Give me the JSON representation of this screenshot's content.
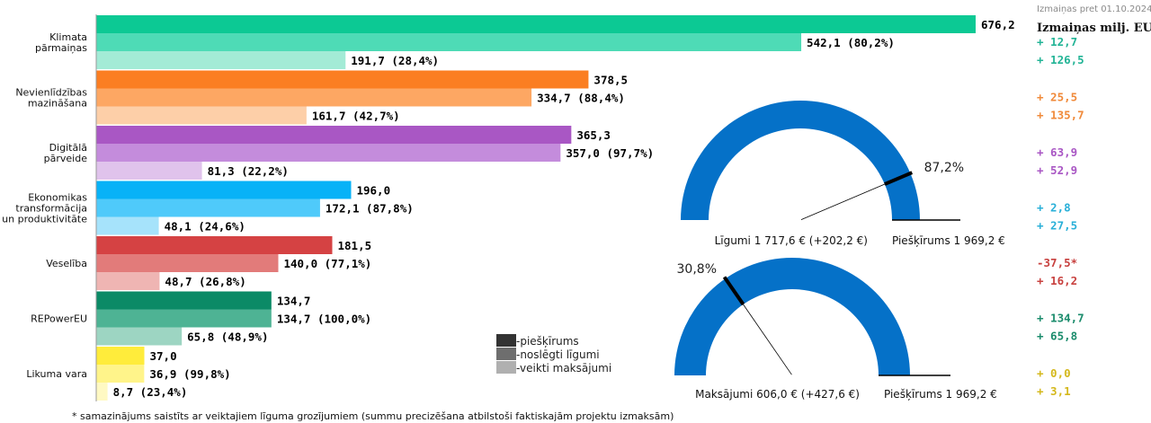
{
  "chart_data": {
    "type": "bar",
    "orientation": "horizontal",
    "x_max": 676.2,
    "categories": [
      {
        "name": "Klimata pārmaiņas",
        "lines": [
          "Klimata",
          "pārmaiņas"
        ],
        "bars": [
          {
            "value": 676.2,
            "label": "676,2",
            "color": "#0cc994"
          },
          {
            "value": 542.1,
            "label": "542,1 (80,2%)",
            "color": "#4edbb6"
          },
          {
            "value": 191.7,
            "label": "191,7 (28,4%)",
            "color": "#a3ebd6"
          }
        ],
        "changes": [
          {
            "text": "+ 12,7",
            "color": "#23b496"
          },
          {
            "text": "+ 126,5",
            "color": "#23b496"
          }
        ]
      },
      {
        "name": "Nevienlīdzības mazināšana",
        "lines": [
          "Nevienlīdzības",
          "mazināšana"
        ],
        "bars": [
          {
            "value": 378.5,
            "label": "378,5",
            "color": "#fb7e22"
          },
          {
            "value": 334.7,
            "label": "334,7 (88,4%)",
            "color": "#fda763"
          },
          {
            "value": 161.7,
            "label": "161,7 (42,7%)",
            "color": "#fdcfa8"
          }
        ],
        "changes": [
          {
            "text": "+ 25,5",
            "color": "#f08a3a"
          },
          {
            "text": "+ 135,7",
            "color": "#f08a3a"
          }
        ]
      },
      {
        "name": "Digitālā pārveide",
        "lines": [
          "Digitālā",
          "pārveide"
        ],
        "bars": [
          {
            "value": 365.3,
            "label": "365,3",
            "color": "#a957c4"
          },
          {
            "value": 357.0,
            "label": "357,0 (97,7%)",
            "color": "#c48cdc"
          },
          {
            "value": 81.3,
            "label": "81,3 (22,2%)",
            "color": "#e0c3ec"
          }
        ],
        "changes": [
          {
            "text": "+ 63,9",
            "color": "#a957c4"
          },
          {
            "text": "+ 52,9",
            "color": "#a957c4"
          }
        ]
      },
      {
        "name": "Ekonomikas transformācija un produktivitāte",
        "lines": [
          "Ekonomikas",
          "transformācija",
          "un produktivitāte"
        ],
        "bars": [
          {
            "value": 196.0,
            "label": "196,0",
            "color": "#08b2f7"
          },
          {
            "value": 172.1,
            "label": "172,1 (87,8%)",
            "color": "#4fcafa"
          },
          {
            "value": 48.1,
            "label": "48,1 (24,6%)",
            "color": "#a6e3fb"
          }
        ],
        "changes": [
          {
            "text": "+ 2,8",
            "color": "#2ab0d8"
          },
          {
            "text": "+ 27,5",
            "color": "#2ab0d8"
          }
        ]
      },
      {
        "name": "Veselība",
        "lines": [
          "Veselība"
        ],
        "bars": [
          {
            "value": 181.5,
            "label": "181,5",
            "color": "#d54243"
          },
          {
            "value": 140.0,
            "label": "140,0 (77,1%)",
            "color": "#e27b7a"
          },
          {
            "value": 48.7,
            "label": "48,7 (26,8%)",
            "color": "#efb5b3"
          }
        ],
        "changes": [
          {
            "text": "-37,5*",
            "color": "#c8413f"
          },
          {
            "text": "+ 16,2",
            "color": "#c8413f"
          }
        ]
      },
      {
        "name": "REPowerEU",
        "lines": [
          "REPowerEU"
        ],
        "bars": [
          {
            "value": 134.7,
            "label": "134,7",
            "color": "#0b8a66"
          },
          {
            "value": 134.7,
            "label": "134,7 (100,0%)",
            "color": "#4eb394"
          },
          {
            "value": 65.8,
            "label": "65,8 (48,9%)",
            "color": "#9dd5c2"
          }
        ],
        "changes": [
          {
            "text": "+ 134,7",
            "color": "#1b8c6c"
          },
          {
            "text": "+ 65,8",
            "color": "#1b8c6c"
          }
        ]
      },
      {
        "name": "Likuma vara",
        "lines": [
          "Likuma vara"
        ],
        "bars": [
          {
            "value": 37.0,
            "label": "37,0",
            "color": "#ffec3b"
          },
          {
            "value": 36.9,
            "label": "36,9 (99,8%)",
            "color": "#fff48a"
          },
          {
            "value": 8.7,
            "label": "8,7 (23,4%)",
            "color": "#fff9c3"
          }
        ],
        "changes": [
          {
            "text": "+ 0,0",
            "color": "#d4b81c"
          },
          {
            "text": "+ 3,1",
            "color": "#d4b81c"
          }
        ]
      }
    ],
    "legend": [
      {
        "label": "piešķīrums",
        "color": "#333333"
      },
      {
        "label": "noslēgti līgumi",
        "color": "#6e6e6e"
      },
      {
        "label": "veikti maksājumi",
        "color": "#b0b0b0"
      }
    ],
    "changes_header_small": "Izmaiņas pret 01.10.2024",
    "changes_header": "Izmaiņas milj. EUR",
    "gauges": [
      {
        "name": "contracts",
        "fraction": 0.872,
        "percent_label": "87,2%",
        "left_label": "Līgumi 1 717,6 € (+202,2 €)",
        "right_label": "Piešķīrums 1 969,2 €",
        "color": "#0571c8"
      },
      {
        "name": "payments",
        "fraction": 0.308,
        "percent_label": "30,8%",
        "left_label": "Maksājumi 606,0 € (+427,6 €)",
        "right_label": "Piešķīrums 1 969,2 €",
        "color": "#0571c8"
      }
    ],
    "footnote": "* samazinājums saistīts ar veiktajiem līguma grozījumiem (summu precizēšana atbilstoši faktiskajām projektu izmaksām)"
  }
}
